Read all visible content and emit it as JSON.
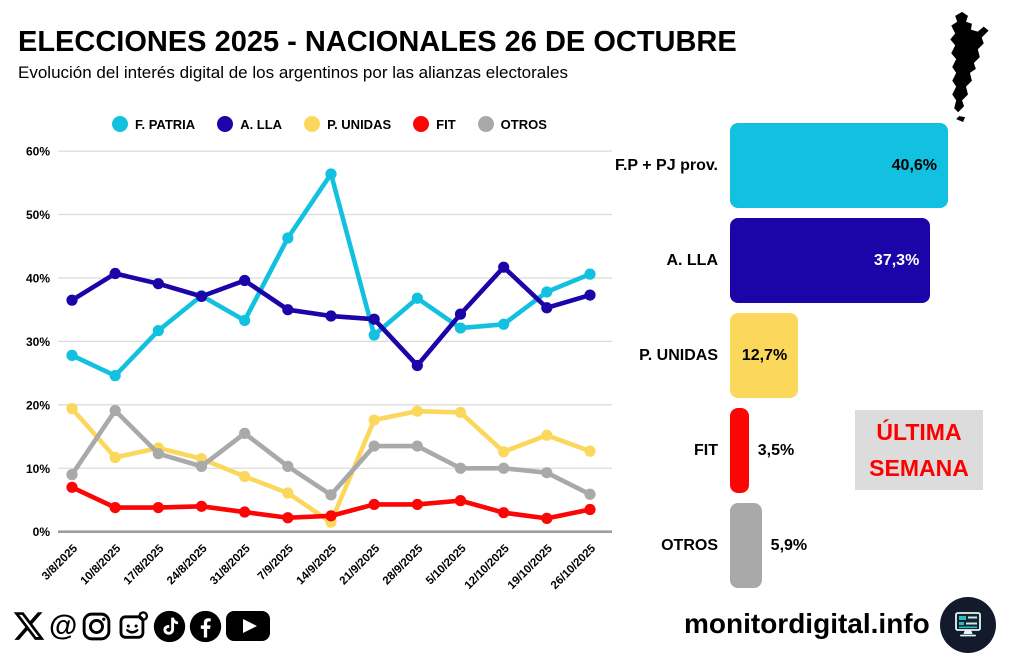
{
  "header": {
    "title": "ELECCIONES 2025 - NACIONALES 26 DE OCTUBRE",
    "subtitle": "Evolución del interés digital de los argentinos por las alianzas electorales"
  },
  "chart_data": [
    {
      "type": "line",
      "x": [
        "3/8/2025",
        "10/8/2025",
        "17/8/2025",
        "24/8/2025",
        "31/8/2025",
        "7/9/2025",
        "14/9/2025",
        "21/9/2025",
        "28/9/2025",
        "5/10/2025",
        "12/10/2025",
        "19/10/2025",
        "26/10/2025"
      ],
      "ylim": [
        0,
        62
      ],
      "yticks": [
        0,
        10,
        20,
        30,
        40,
        50,
        60
      ],
      "ytick_labels": [
        "0%",
        "10%",
        "20%",
        "30%",
        "40%",
        "50%",
        "60%"
      ],
      "grid": true,
      "legend_position": "top",
      "series": [
        {
          "name": "F. PATRIA",
          "color": "#12C1E0",
          "values": [
            27.8,
            24.6,
            31.7,
            37.2,
            33.3,
            46.3,
            56.4,
            31.0,
            36.8,
            32.1,
            32.7,
            37.8,
            40.6
          ]
        },
        {
          "name": "A. LLA",
          "color": "#1B04A8",
          "values": [
            36.5,
            40.7,
            39.1,
            37.1,
            39.6,
            35.0,
            34.0,
            33.5,
            26.2,
            34.3,
            41.7,
            35.3,
            37.3
          ]
        },
        {
          "name": "P. UNIDAS",
          "color": "#FBD85C",
          "values": [
            19.4,
            11.7,
            13.2,
            11.5,
            8.7,
            6.1,
            1.5,
            17.6,
            19.0,
            18.8,
            12.6,
            15.2,
            12.7
          ]
        },
        {
          "name": "FIT",
          "color": "#FB0505",
          "values": [
            7.0,
            3.8,
            3.8,
            4.0,
            3.1,
            2.2,
            2.5,
            4.3,
            4.3,
            4.9,
            3.0,
            2.1,
            3.5
          ]
        },
        {
          "name": "OTROS",
          "color": "#A9A9A9",
          "values": [
            9.0,
            19.1,
            12.3,
            10.3,
            15.5,
            10.3,
            5.8,
            13.5,
            13.5,
            10.0,
            10.0,
            9.3,
            5.9
          ]
        }
      ]
    },
    {
      "type": "bar",
      "orientation": "horizontal",
      "categories": [
        "F.P + PJ prov.",
        "A. LLA",
        "P. UNIDAS",
        "FIT",
        "OTROS"
      ],
      "values": [
        40.6,
        37.3,
        12.7,
        3.5,
        5.9
      ],
      "value_labels": [
        "40,6%",
        "37,3%",
        "12,7%",
        "3,5%",
        "5,9%"
      ],
      "bar_colors": [
        "#12C1E0",
        "#1B04A8",
        "#FBD85C",
        "#FB0505",
        "#A9A9A9"
      ],
      "value_label_colors": [
        "#000000",
        "#FFFFFF",
        "#000000",
        "#000000",
        "#000000"
      ],
      "value_label_placement": [
        "inside",
        "inside",
        "inside",
        "outside",
        "outside"
      ],
      "xlim": [
        0,
        45
      ]
    }
  ],
  "annotation": {
    "line1": "ÚLTIMA",
    "line2": "SEMANA",
    "text_color": "#FF0000",
    "background": "#DCDCDC"
  },
  "footer": {
    "site": "monitordigital.info",
    "social_icons": [
      "x-icon",
      "threads-icon",
      "instagram-icon",
      "kwai-icon",
      "tiktok-icon",
      "facebook-icon",
      "youtube-icon"
    ]
  }
}
